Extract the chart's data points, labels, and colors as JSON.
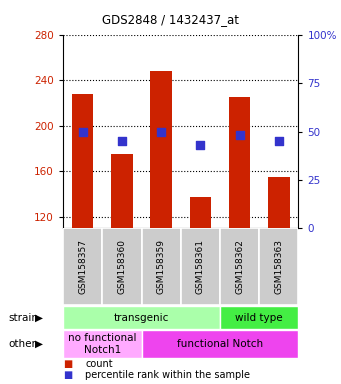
{
  "title": "GDS2848 / 1432437_at",
  "samples": [
    "GSM158357",
    "GSM158360",
    "GSM158359",
    "GSM158361",
    "GSM158362",
    "GSM158363"
  ],
  "bar_values": [
    228,
    175,
    248,
    138,
    225,
    155
  ],
  "dot_values_pct": [
    50,
    45,
    50,
    43,
    48,
    45
  ],
  "ylim_left": [
    110,
    280
  ],
  "ylim_right": [
    0,
    100
  ],
  "yticks_left": [
    120,
    160,
    200,
    240,
    280
  ],
  "yticks_right": [
    0,
    25,
    50,
    75,
    100
  ],
  "bar_color": "#cc2200",
  "dot_color": "#3333cc",
  "bar_width": 0.55,
  "strain_groups": [
    {
      "label": "transgenic",
      "start": 0,
      "end": 3,
      "color": "#aaffaa"
    },
    {
      "label": "wild type",
      "start": 4,
      "end": 5,
      "color": "#44ee44"
    }
  ],
  "other_groups": [
    {
      "label": "no functional\nNotch1",
      "start": 0,
      "end": 1,
      "color": "#ffaaff"
    },
    {
      "label": "functional Notch",
      "start": 2,
      "end": 5,
      "color": "#ee44ee"
    }
  ],
  "legend_count_label": "count",
  "legend_pct_label": "percentile rank within the sample",
  "strain_row_label": "strain",
  "other_row_label": "other",
  "tick_label_bg": "#cccccc",
  "fig_width": 3.41,
  "fig_height": 3.84,
  "dpi": 100
}
